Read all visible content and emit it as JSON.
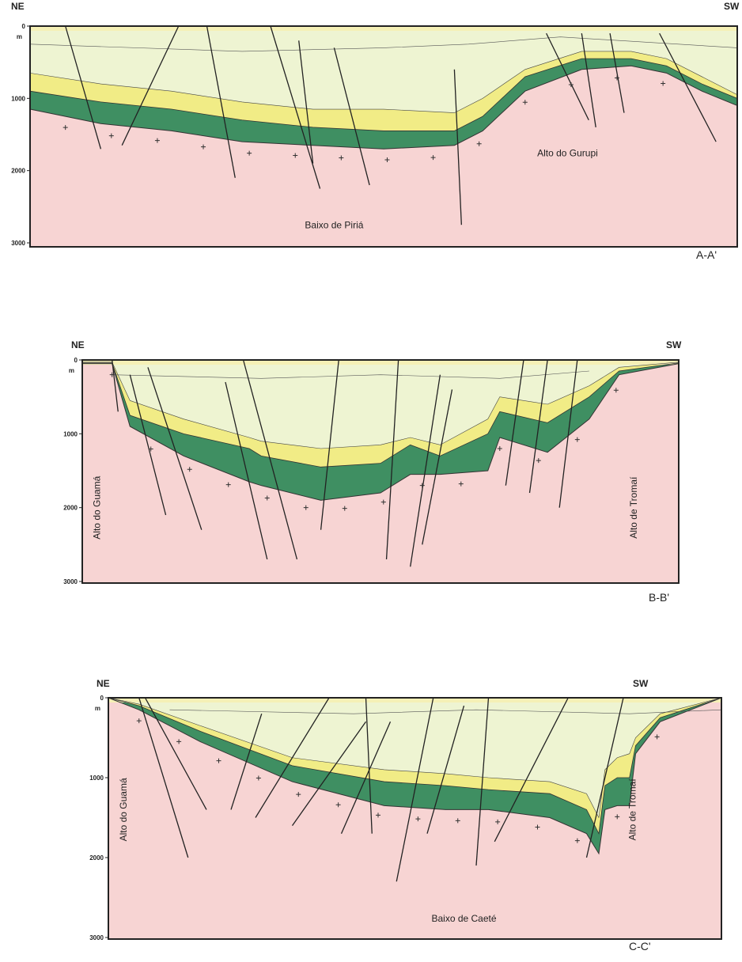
{
  "sections": [
    {
      "left": "NE",
      "right": "SW",
      "unit": "m",
      "depth_ticks": [
        0,
        1000,
        2000,
        3000
      ],
      "name": "A-A'",
      "places": [
        "Alto do Gurupi",
        "Baixo de Piriá"
      ]
    },
    {
      "left": "NE",
      "right": "SW",
      "unit": "m",
      "depth_ticks": [
        0,
        1000,
        2000,
        3000
      ],
      "name": "B-B'",
      "places": [
        "Alto do Guamá",
        "Alto de Tromaí"
      ]
    },
    {
      "left": "NE",
      "right": "SW",
      "unit": "m",
      "depth_ticks": [
        0,
        1000,
        2000,
        3000
      ],
      "name": "C-C'",
      "places": [
        "Alto do Guamá",
        "Alto de Tromaí",
        "Baixo de Caeté"
      ]
    }
  ]
}
